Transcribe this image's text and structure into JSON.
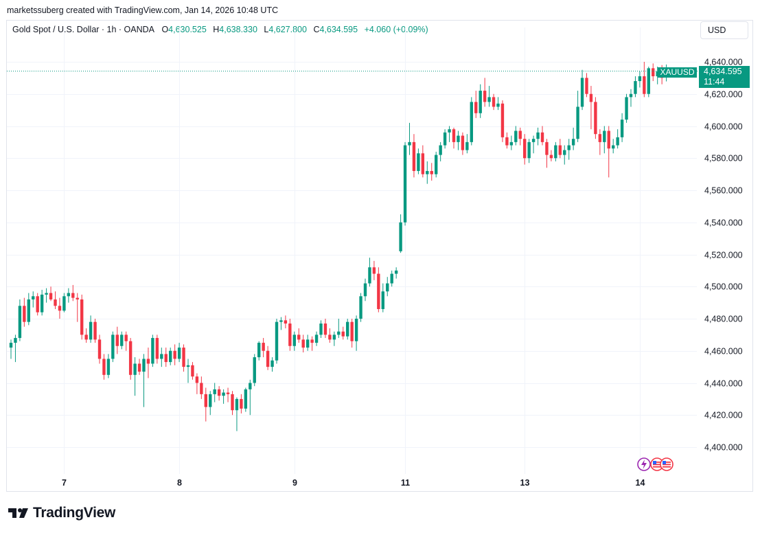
{
  "caption": "marketssuberg created with TradingView.com, Jan 14, 2026 10:48 UTC",
  "legend": {
    "title": "Gold Spot / U.S. Dollar · 1h · OANDA",
    "o_label": "O",
    "o_value": "4,630.525",
    "h_label": "H",
    "h_value": "4,638.330",
    "l_label": "L",
    "l_value": "4,627.800",
    "c_label": "C",
    "c_value": "4,634.595",
    "change": "+4.060 (+0.09%)"
  },
  "currency": "USD",
  "price_tag": {
    "symbol": "XAUUSD",
    "price": "4,634.595",
    "countdown": "11:44"
  },
  "brand": {
    "name": "TradingView"
  },
  "colors": {
    "up": "#089981",
    "down": "#f23645",
    "grid": "#f0f3fa",
    "axis_text": "#131722"
  },
  "chart_data": {
    "type": "candlestick",
    "symbol": "XAUUSD",
    "timeframe": "1h",
    "y_ticks": [
      4400,
      4420,
      4440,
      4460,
      4480,
      4500,
      4520,
      4540,
      4560,
      4580,
      4600,
      4620,
      4640
    ],
    "y_tick_labels": [
      "4,400.000",
      "4,420.000",
      "4,440.000",
      "4,460.000",
      "4,480.000",
      "4,500.000",
      "4,520.000",
      "4,540.000",
      "4,560.000",
      "4,580.000",
      "4,600.000",
      "4,620.000",
      "4,640.000"
    ],
    "ylim": [
      4385,
      4650
    ],
    "x_tick_labels": [
      "7",
      "8",
      "9",
      "11",
      "13",
      "14"
    ],
    "x_tick_index": [
      12,
      38,
      64,
      89,
      116,
      142
    ],
    "last_price": 4634.595,
    "candles": [
      {
        "o": 4462,
        "h": 4467,
        "l": 4455,
        "c": 4465
      },
      {
        "o": 4465,
        "h": 4470,
        "l": 4453,
        "c": 4468
      },
      {
        "o": 4468,
        "h": 4492,
        "l": 4466,
        "c": 4488
      },
      {
        "o": 4488,
        "h": 4493,
        "l": 4475,
        "c": 4478
      },
      {
        "o": 4478,
        "h": 4496,
        "l": 4476,
        "c": 4492
      },
      {
        "o": 4492,
        "h": 4497,
        "l": 4487,
        "c": 4494
      },
      {
        "o": 4494,
        "h": 4496,
        "l": 4482,
        "c": 4484
      },
      {
        "o": 4484,
        "h": 4498,
        "l": 4482,
        "c": 4495
      },
      {
        "o": 4495,
        "h": 4499,
        "l": 4490,
        "c": 4496
      },
      {
        "o": 4496,
        "h": 4500,
        "l": 4491,
        "c": 4492
      },
      {
        "o": 4492,
        "h": 4497,
        "l": 4486,
        "c": 4488
      },
      {
        "o": 4488,
        "h": 4493,
        "l": 4480,
        "c": 4485
      },
      {
        "o": 4485,
        "h": 4496,
        "l": 4484,
        "c": 4494
      },
      {
        "o": 4494,
        "h": 4499,
        "l": 4490,
        "c": 4496
      },
      {
        "o": 4496,
        "h": 4501,
        "l": 4491,
        "c": 4493
      },
      {
        "o": 4493,
        "h": 4496,
        "l": 4478,
        "c": 4492
      },
      {
        "o": 4492,
        "h": 4495,
        "l": 4467,
        "c": 4470
      },
      {
        "o": 4470,
        "h": 4474,
        "l": 4465,
        "c": 4467
      },
      {
        "o": 4467,
        "h": 4482,
        "l": 4465,
        "c": 4478
      },
      {
        "o": 4478,
        "h": 4480,
        "l": 4465,
        "c": 4467
      },
      {
        "o": 4467,
        "h": 4470,
        "l": 4452,
        "c": 4455
      },
      {
        "o": 4455,
        "h": 4458,
        "l": 4442,
        "c": 4445
      },
      {
        "o": 4445,
        "h": 4458,
        "l": 4443,
        "c": 4455
      },
      {
        "o": 4455,
        "h": 4472,
        "l": 4453,
        "c": 4470
      },
      {
        "o": 4470,
        "h": 4475,
        "l": 4458,
        "c": 4463
      },
      {
        "o": 4463,
        "h": 4472,
        "l": 4461,
        "c": 4470
      },
      {
        "o": 4470,
        "h": 4472,
        "l": 4460,
        "c": 4466
      },
      {
        "o": 4466,
        "h": 4468,
        "l": 4442,
        "c": 4445
      },
      {
        "o": 4445,
        "h": 4456,
        "l": 4432,
        "c": 4452
      },
      {
        "o": 4452,
        "h": 4455,
        "l": 4445,
        "c": 4447
      },
      {
        "o": 4447,
        "h": 4458,
        "l": 4425,
        "c": 4455
      },
      {
        "o": 4455,
        "h": 4462,
        "l": 4443,
        "c": 4452
      },
      {
        "o": 4452,
        "h": 4470,
        "l": 4450,
        "c": 4468
      },
      {
        "o": 4468,
        "h": 4470,
        "l": 4452,
        "c": 4455
      },
      {
        "o": 4455,
        "h": 4462,
        "l": 4450,
        "c": 4458
      },
      {
        "o": 4458,
        "h": 4462,
        "l": 4450,
        "c": 4453
      },
      {
        "o": 4453,
        "h": 4462,
        "l": 4451,
        "c": 4460
      },
      {
        "o": 4460,
        "h": 4464,
        "l": 4451,
        "c": 4455
      },
      {
        "o": 4455,
        "h": 4465,
        "l": 4453,
        "c": 4462
      },
      {
        "o": 4462,
        "h": 4464,
        "l": 4447,
        "c": 4450
      },
      {
        "o": 4450,
        "h": 4455,
        "l": 4440,
        "c": 4451
      },
      {
        "o": 4451,
        "h": 4453,
        "l": 4442,
        "c": 4444
      },
      {
        "o": 4444,
        "h": 4446,
        "l": 4433,
        "c": 4440
      },
      {
        "o": 4440,
        "h": 4444,
        "l": 4430,
        "c": 4433
      },
      {
        "o": 4433,
        "h": 4437,
        "l": 4416,
        "c": 4425
      },
      {
        "o": 4425,
        "h": 4435,
        "l": 4420,
        "c": 4433
      },
      {
        "o": 4433,
        "h": 4440,
        "l": 4428,
        "c": 4436
      },
      {
        "o": 4436,
        "h": 4438,
        "l": 4429,
        "c": 4432
      },
      {
        "o": 4432,
        "h": 4436,
        "l": 4427,
        "c": 4434
      },
      {
        "o": 4434,
        "h": 4437,
        "l": 4428,
        "c": 4433
      },
      {
        "o": 4433,
        "h": 4435,
        "l": 4420,
        "c": 4423
      },
      {
        "o": 4423,
        "h": 4431,
        "l": 4410,
        "c": 4430
      },
      {
        "o": 4430,
        "h": 4433,
        "l": 4421,
        "c": 4424
      },
      {
        "o": 4424,
        "h": 4437,
        "l": 4422,
        "c": 4436
      },
      {
        "o": 4436,
        "h": 4442,
        "l": 4420,
        "c": 4440
      },
      {
        "o": 4440,
        "h": 4458,
        "l": 4438,
        "c": 4456
      },
      {
        "o": 4456,
        "h": 4466,
        "l": 4454,
        "c": 4465
      },
      {
        "o": 4465,
        "h": 4468,
        "l": 4456,
        "c": 4460
      },
      {
        "o": 4460,
        "h": 4463,
        "l": 4448,
        "c": 4450
      },
      {
        "o": 4450,
        "h": 4456,
        "l": 4447,
        "c": 4454
      },
      {
        "o": 4454,
        "h": 4480,
        "l": 4452,
        "c": 4478
      },
      {
        "o": 4478,
        "h": 4481,
        "l": 4473,
        "c": 4479
      },
      {
        "o": 4479,
        "h": 4482,
        "l": 4474,
        "c": 4477
      },
      {
        "o": 4477,
        "h": 4480,
        "l": 4460,
        "c": 4463
      },
      {
        "o": 4463,
        "h": 4472,
        "l": 4460,
        "c": 4470
      },
      {
        "o": 4470,
        "h": 4474,
        "l": 4465,
        "c": 4467
      },
      {
        "o": 4467,
        "h": 4470,
        "l": 4459,
        "c": 4462
      },
      {
        "o": 4462,
        "h": 4470,
        "l": 4460,
        "c": 4467
      },
      {
        "o": 4467,
        "h": 4469,
        "l": 4460,
        "c": 4465
      },
      {
        "o": 4465,
        "h": 4472,
        "l": 4463,
        "c": 4470
      },
      {
        "o": 4470,
        "h": 4479,
        "l": 4468,
        "c": 4477
      },
      {
        "o": 4477,
        "h": 4480,
        "l": 4468,
        "c": 4470
      },
      {
        "o": 4470,
        "h": 4474,
        "l": 4465,
        "c": 4467
      },
      {
        "o": 4467,
        "h": 4472,
        "l": 4463,
        "c": 4470
      },
      {
        "o": 4470,
        "h": 4480,
        "l": 4468,
        "c": 4472
      },
      {
        "o": 4472,
        "h": 4475,
        "l": 4467,
        "c": 4469
      },
      {
        "o": 4469,
        "h": 4480,
        "l": 4467,
        "c": 4478
      },
      {
        "o": 4478,
        "h": 4480,
        "l": 4462,
        "c": 4466
      },
      {
        "o": 4466,
        "h": 4482,
        "l": 4460,
        "c": 4480
      },
      {
        "o": 4480,
        "h": 4496,
        "l": 4478,
        "c": 4494
      },
      {
        "o": 4494,
        "h": 4505,
        "l": 4491,
        "c": 4502
      },
      {
        "o": 4502,
        "h": 4518,
        "l": 4500,
        "c": 4512
      },
      {
        "o": 4512,
        "h": 4516,
        "l": 4504,
        "c": 4508
      },
      {
        "o": 4508,
        "h": 4512,
        "l": 4484,
        "c": 4486
      },
      {
        "o": 4486,
        "h": 4502,
        "l": 4484,
        "c": 4497
      },
      {
        "o": 4497,
        "h": 4506,
        "l": 4494,
        "c": 4502
      },
      {
        "o": 4502,
        "h": 4510,
        "l": 4500,
        "c": 4508
      },
      {
        "o": 4508,
        "h": 4512,
        "l": 4505,
        "c": 4510
      },
      {
        "o": 4522,
        "h": 4545,
        "l": 4521,
        "c": 4540
      },
      {
        "o": 4540,
        "h": 4590,
        "l": 4538,
        "c": 4588
      },
      {
        "o": 4588,
        "h": 4602,
        "l": 4582,
        "c": 4590
      },
      {
        "o": 4590,
        "h": 4595,
        "l": 4568,
        "c": 4572
      },
      {
        "o": 4572,
        "h": 4586,
        "l": 4570,
        "c": 4583
      },
      {
        "o": 4583,
        "h": 4588,
        "l": 4568,
        "c": 4570
      },
      {
        "o": 4570,
        "h": 4578,
        "l": 4564,
        "c": 4572
      },
      {
        "o": 4572,
        "h": 4577,
        "l": 4566,
        "c": 4570
      },
      {
        "o": 4570,
        "h": 4584,
        "l": 4568,
        "c": 4582
      },
      {
        "o": 4582,
        "h": 4590,
        "l": 4578,
        "c": 4588
      },
      {
        "o": 4588,
        "h": 4598,
        "l": 4586,
        "c": 4596
      },
      {
        "o": 4596,
        "h": 4600,
        "l": 4590,
        "c": 4598
      },
      {
        "o": 4598,
        "h": 4599,
        "l": 4586,
        "c": 4590
      },
      {
        "o": 4590,
        "h": 4597,
        "l": 4585,
        "c": 4594
      },
      {
        "o": 4594,
        "h": 4596,
        "l": 4582,
        "c": 4585
      },
      {
        "o": 4585,
        "h": 4595,
        "l": 4583,
        "c": 4590
      },
      {
        "o": 4590,
        "h": 4618,
        "l": 4588,
        "c": 4615
      },
      {
        "o": 4615,
        "h": 4622,
        "l": 4605,
        "c": 4608
      },
      {
        "o": 4608,
        "h": 4626,
        "l": 4605,
        "c": 4622
      },
      {
        "o": 4622,
        "h": 4630,
        "l": 4612,
        "c": 4615
      },
      {
        "o": 4615,
        "h": 4625,
        "l": 4612,
        "c": 4618
      },
      {
        "o": 4618,
        "h": 4620,
        "l": 4610,
        "c": 4612
      },
      {
        "o": 4612,
        "h": 4618,
        "l": 4610,
        "c": 4614
      },
      {
        "o": 4614,
        "h": 4616,
        "l": 4590,
        "c": 4593
      },
      {
        "o": 4593,
        "h": 4596,
        "l": 4586,
        "c": 4588
      },
      {
        "o": 4588,
        "h": 4594,
        "l": 4585,
        "c": 4590
      },
      {
        "o": 4590,
        "h": 4600,
        "l": 4588,
        "c": 4597
      },
      {
        "o": 4597,
        "h": 4599,
        "l": 4588,
        "c": 4592
      },
      {
        "o": 4592,
        "h": 4595,
        "l": 4576,
        "c": 4580
      },
      {
        "o": 4580,
        "h": 4592,
        "l": 4577,
        "c": 4590
      },
      {
        "o": 4590,
        "h": 4594,
        "l": 4583,
        "c": 4592
      },
      {
        "o": 4592,
        "h": 4599,
        "l": 4588,
        "c": 4596
      },
      {
        "o": 4596,
        "h": 4600,
        "l": 4588,
        "c": 4590
      },
      {
        "o": 4590,
        "h": 4592,
        "l": 4574,
        "c": 4582
      },
      {
        "o": 4582,
        "h": 4585,
        "l": 4578,
        "c": 4580
      },
      {
        "o": 4580,
        "h": 4590,
        "l": 4578,
        "c": 4588
      },
      {
        "o": 4588,
        "h": 4592,
        "l": 4580,
        "c": 4582
      },
      {
        "o": 4582,
        "h": 4588,
        "l": 4576,
        "c": 4585
      },
      {
        "o": 4585,
        "h": 4592,
        "l": 4579,
        "c": 4588
      },
      {
        "o": 4588,
        "h": 4599,
        "l": 4585,
        "c": 4592
      },
      {
        "o": 4592,
        "h": 4622,
        "l": 4590,
        "c": 4612
      },
      {
        "o": 4612,
        "h": 4635,
        "l": 4610,
        "c": 4630
      },
      {
        "o": 4630,
        "h": 4633,
        "l": 4618,
        "c": 4620
      },
      {
        "o": 4620,
        "h": 4625,
        "l": 4598,
        "c": 4615
      },
      {
        "o": 4615,
        "h": 4618,
        "l": 4592,
        "c": 4595
      },
      {
        "o": 4595,
        "h": 4598,
        "l": 4582,
        "c": 4590
      },
      {
        "o": 4590,
        "h": 4600,
        "l": 4583,
        "c": 4597
      },
      {
        "o": 4597,
        "h": 4600,
        "l": 4568,
        "c": 4586
      },
      {
        "o": 4586,
        "h": 4592,
        "l": 4583,
        "c": 4588
      },
      {
        "o": 4588,
        "h": 4598,
        "l": 4586,
        "c": 4593
      },
      {
        "o": 4593,
        "h": 4608,
        "l": 4590,
        "c": 4604
      },
      {
        "o": 4604,
        "h": 4620,
        "l": 4602,
        "c": 4618
      },
      {
        "o": 4618,
        "h": 4623,
        "l": 4612,
        "c": 4620
      },
      {
        "o": 4620,
        "h": 4631,
        "l": 4618,
        "c": 4628
      },
      {
        "o": 4628,
        "h": 4634,
        "l": 4624,
        "c": 4631
      },
      {
        "o": 4631,
        "h": 4640,
        "l": 4618,
        "c": 4620
      },
      {
        "o": 4620,
        "h": 4637,
        "l": 4618,
        "c": 4636
      },
      {
        "o": 4636,
        "h": 4639,
        "l": 4628,
        "c": 4631
      },
      {
        "o": 4631,
        "h": 4637,
        "l": 4626,
        "c": 4634
      },
      {
        "o": 4634,
        "h": 4638,
        "l": 4626,
        "c": 4630
      },
      {
        "o": 4630.525,
        "h": 4638.33,
        "l": 4627.8,
        "c": 4634.595
      }
    ]
  }
}
